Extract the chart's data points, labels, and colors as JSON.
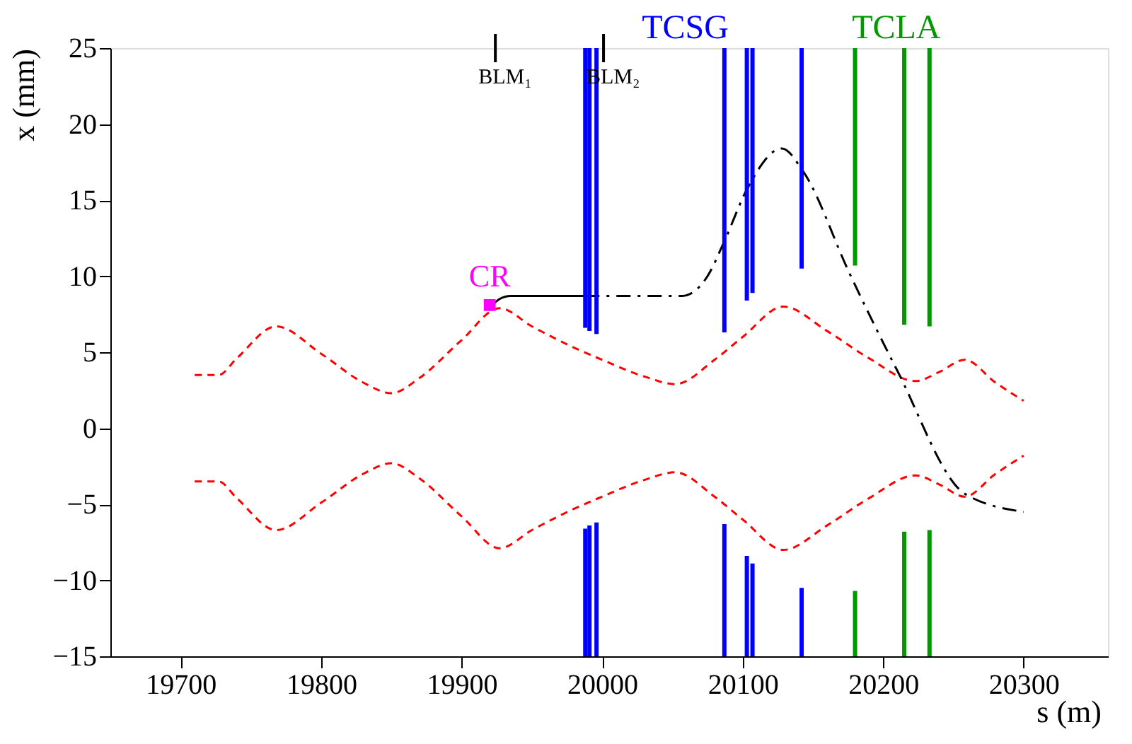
{
  "chart_data": {
    "type": "line",
    "xlabel": "s (m)",
    "ylabel": "x (mm)",
    "xlim": [
      19650,
      20360
    ],
    "xticks": [
      19700,
      19800,
      19900,
      20000,
      20100,
      20200,
      20300
    ],
    "ref_lines": [
      {
        "axis": "x",
        "value": 19924,
        "label": "BLM₁",
        "color": "#000000"
      },
      {
        "axis": "x",
        "value": 20001,
        "label": "BLM₂",
        "color": "#000000"
      }
    ],
    "ylim": [
      -15,
      25
    ],
    "yticks": [
      -15,
      -10,
      -5,
      0,
      5,
      10,
      15,
      20,
      25
    ],
    "grid": false,
    "series": [
      {
        "color": "#ff0000",
        "line_style": "dashed",
        "x": [
          19710,
          19727,
          19740,
          19768,
          19800,
          19830,
          19850,
          19870,
          19900,
          19927,
          19950,
          19980,
          20000,
          20030,
          20052,
          20080,
          20100,
          20129,
          20160,
          20190,
          20223,
          20240,
          20258,
          20280,
          20300
        ],
        "values": [
          3.5,
          3.5,
          4.6,
          6.7,
          4.9,
          3.0,
          2.3,
          3.3,
          5.8,
          7.9,
          6.7,
          5.3,
          4.5,
          3.4,
          2.9,
          4.5,
          6.0,
          8.0,
          6.4,
          4.6,
          3.1,
          3.7,
          4.5,
          3.0,
          1.8
        ]
      },
      {
        "color": "#ff0000",
        "line_style": "dashed",
        "x": [
          19710,
          19727,
          19740,
          19768,
          19800,
          19830,
          19850,
          19870,
          19900,
          19927,
          19950,
          19980,
          20000,
          20030,
          20052,
          20080,
          20100,
          20129,
          20160,
          20190,
          20223,
          20240,
          20258,
          20280,
          20300
        ],
        "values": [
          -3.5,
          -3.5,
          -4.6,
          -6.7,
          -4.9,
          -3.0,
          -2.3,
          -3.3,
          -5.8,
          -7.9,
          -6.7,
          -5.3,
          -4.5,
          -3.4,
          -2.9,
          -4.5,
          -6.0,
          -8.0,
          -6.4,
          -4.6,
          -3.1,
          -3.7,
          -4.5,
          -3.0,
          -1.8
        ]
      },
      {
        "color": "#000000",
        "line_style": "solid",
        "x": [
          19922,
          19927,
          19935,
          19988
        ],
        "values": [
          8.1,
          8.5,
          8.7,
          8.7
        ]
      },
      {
        "color": "#000000",
        "line_style": "dashdot",
        "x": [
          19988,
          20057,
          20075,
          20087,
          20103,
          20128,
          20143,
          20176,
          20210,
          20258,
          20300
        ],
        "values": [
          8.7,
          8.7,
          10.0,
          12.3,
          15.7,
          18.4,
          16.9,
          10.2,
          3.8,
          -4.3,
          -5.5
        ]
      },
      {
        "type": "bar",
        "name": "TCSG",
        "color": "#0000ff",
        "x": [
          19988,
          19991,
          19996,
          20087,
          20103,
          20107,
          20142
        ],
        "base": [
          6.6,
          6.4,
          6.2,
          6.3,
          8.4,
          8.9,
          10.5
        ],
        "values": [
          18.4,
          18.6,
          18.8,
          18.7,
          16.6,
          16.1,
          14.5
        ]
      },
      {
        "type": "bar",
        "color": "#0000ff",
        "x": [
          19988,
          19991,
          19996,
          20087,
          20103,
          20107,
          20142
        ],
        "base": [
          -15,
          -15,
          -15,
          -15,
          -15,
          -15,
          -15
        ],
        "values": [
          8.4,
          8.6,
          8.8,
          8.7,
          6.6,
          6.1,
          4.5
        ]
      },
      {
        "type": "bar",
        "name": "TCLA",
        "color": "#009900",
        "x": [
          20180,
          20215,
          20233
        ],
        "base": [
          10.7,
          6.8,
          6.7
        ],
        "values": [
          14.3,
          18.2,
          18.3
        ]
      },
      {
        "type": "bar",
        "color": "#009900",
        "x": [
          20180,
          20215,
          20233
        ],
        "base": [
          -15,
          -15,
          -15
        ],
        "values": [
          4.3,
          8.2,
          8.3
        ]
      },
      {
        "type": "scatter",
        "name": "CR",
        "color": "#ff00ff",
        "marker": "square",
        "x": [
          19920
        ],
        "values": [
          8.1
        ]
      }
    ]
  }
}
